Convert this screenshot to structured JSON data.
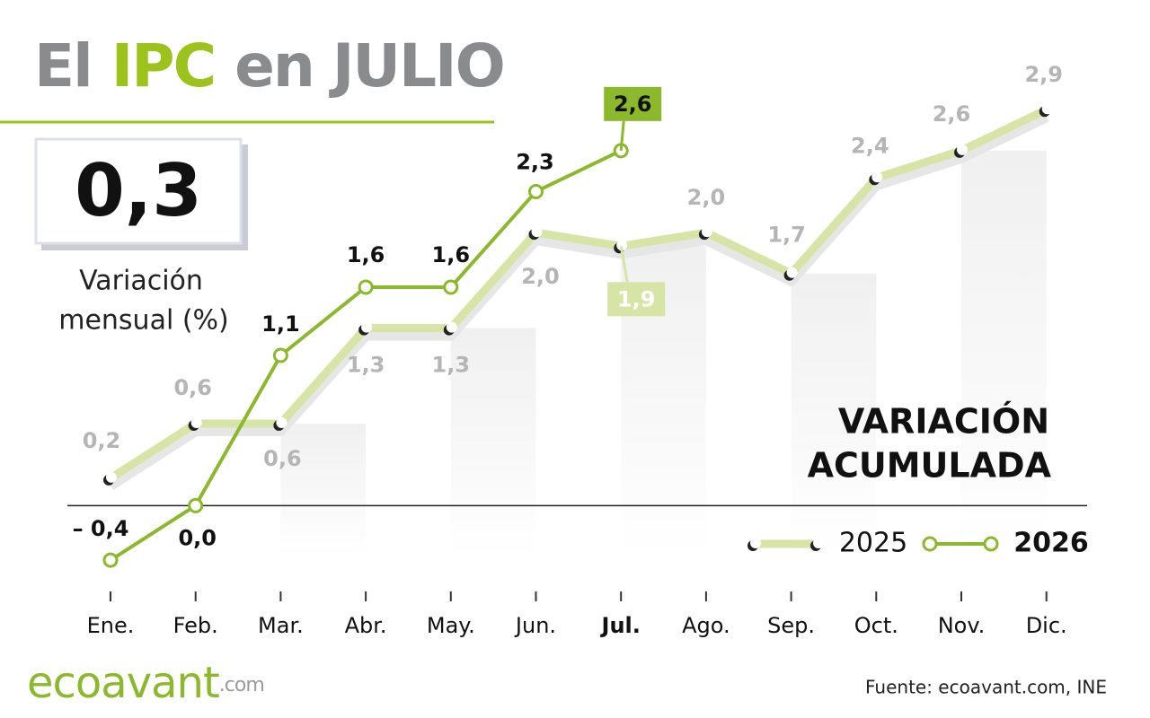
{
  "header": {
    "title_parts": [
      "El",
      "IPC",
      "en JULIO"
    ]
  },
  "monthly_variation": {
    "value": 0.3,
    "label": "0,3",
    "caption_lines": [
      "Variación",
      "mensual (%)"
    ]
  },
  "chart_data": {
    "type": "line",
    "annotation_lines": [
      "VARIACIÓN",
      "ACUMULADA"
    ],
    "categories": [
      "Ene.",
      "Feb.",
      "Mar.",
      "Abr.",
      "May.",
      "Jun.",
      "Jul.",
      "Ago.",
      "Sep.",
      "Oct.",
      "Nov.",
      "Dic."
    ],
    "highlight_category": "Jul.",
    "series": [
      {
        "name": "2025",
        "color": "#d6e4a6",
        "values": [
          0.2,
          0.6,
          0.6,
          1.3,
          1.3,
          2.0,
          1.9,
          2.0,
          1.7,
          2.4,
          2.6,
          2.9
        ],
        "value_labels": [
          "0,2",
          "0,6",
          "0,6",
          "1,3",
          "1,3",
          "2,0",
          "1,9",
          "2,0",
          "1,7",
          "2,4",
          "2,6",
          "2,9"
        ]
      },
      {
        "name": "2026",
        "color": "#8cb82b",
        "values": [
          -0.4,
          0.0,
          1.1,
          1.6,
          1.6,
          2.3,
          2.6,
          null,
          null,
          null,
          null,
          null
        ],
        "value_labels": [
          "– 0,4",
          "0,0",
          "1,1",
          "1,6",
          "1,6",
          "2,3",
          "2,6",
          null,
          null,
          null,
          null,
          null
        ]
      }
    ],
    "ylim": [
      -0.8,
      3.0
    ]
  },
  "footer": {
    "logo_main": "ecoavant",
    "logo_suffix": ".com",
    "source": "Fuente: ecoavant.com, INE"
  }
}
